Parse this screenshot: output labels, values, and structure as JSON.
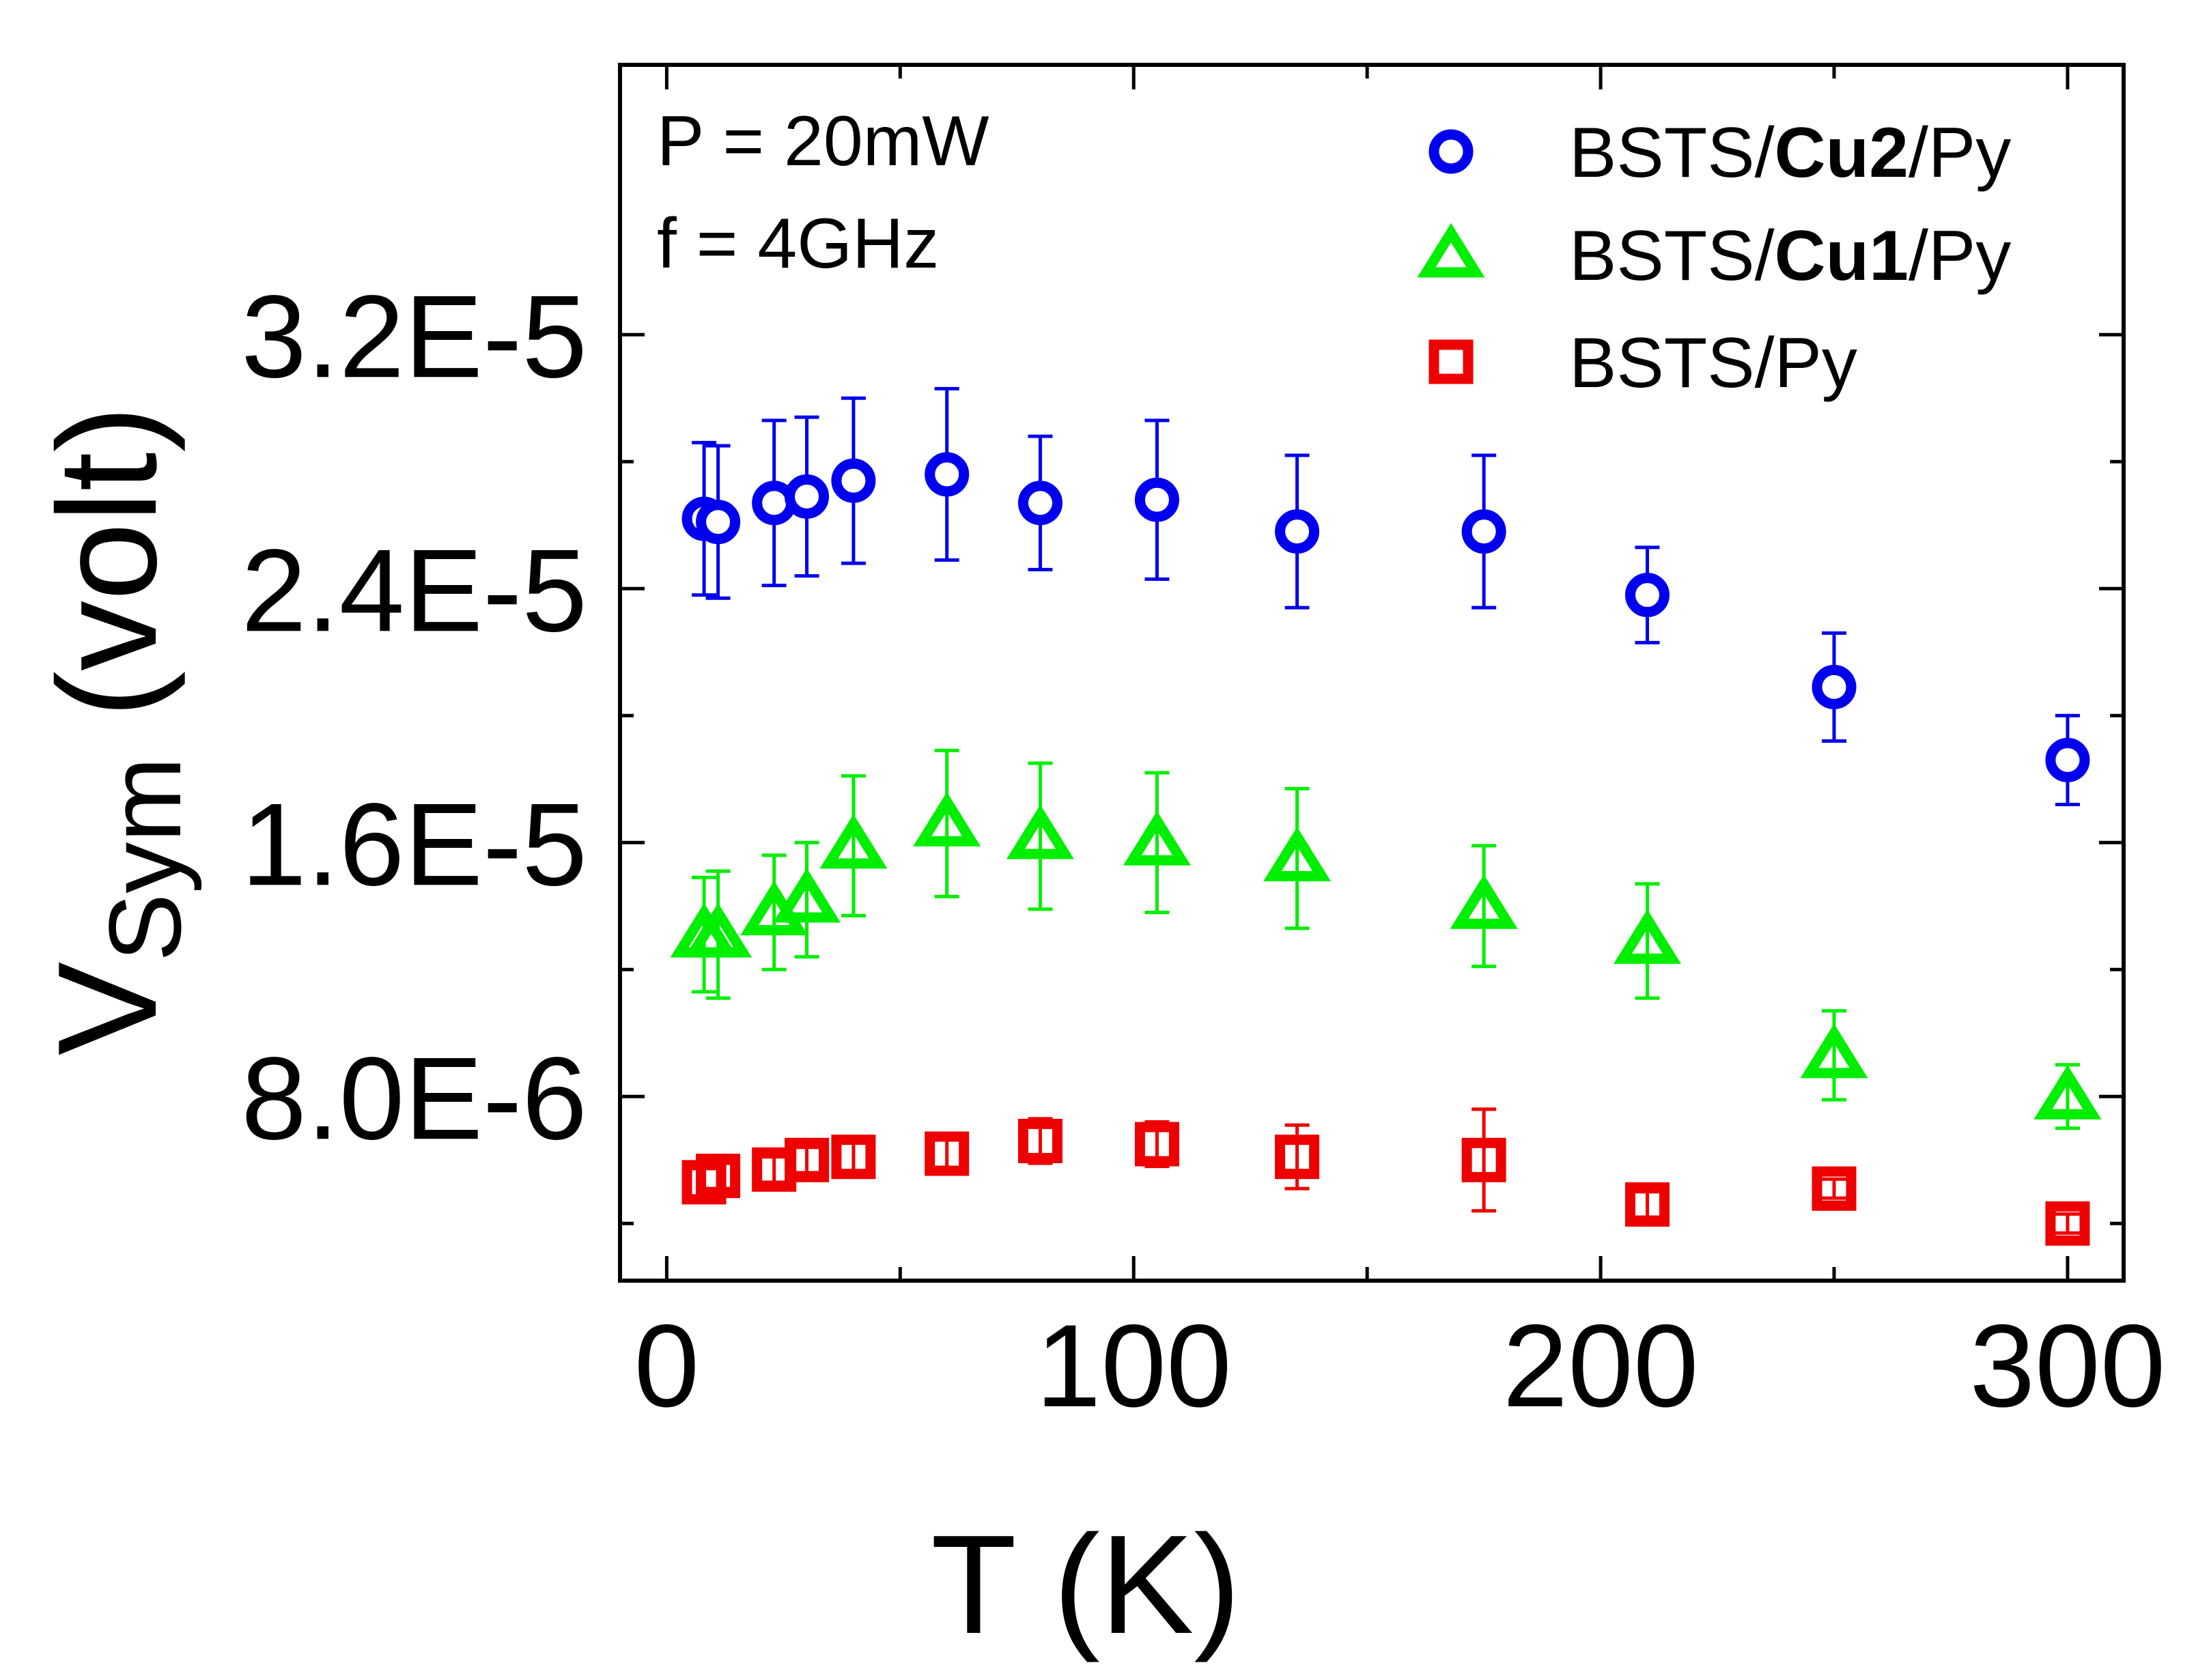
{
  "chart_data": {
    "type": "scatter",
    "xlabel": "T (K)",
    "ylabel": {
      "main": "V",
      "sub": "Sym",
      "unit": " (volt)"
    },
    "xlim": [
      -10,
      312
    ],
    "ylim": [
      2.2e-06,
      4.05e-05
    ],
    "x_ticks": [
      0,
      100,
      200,
      300
    ],
    "x_tick_labels": [
      "0",
      "100",
      "200",
      "300"
    ],
    "x_minor_ticks": [
      50,
      150,
      250
    ],
    "y_ticks": [
      8e-06,
      1.6e-05,
      2.4e-05,
      3.2e-05
    ],
    "y_tick_labels": [
      "8.0E-6",
      "1.6E-5",
      "2.4E-5",
      "3.2E-5"
    ],
    "y_minor_ticks": [
      4e-06,
      1.2e-05,
      2e-05,
      2.8e-05
    ],
    "grid": false,
    "legend_position": "top-right",
    "annotations": [
      "P = 20mW",
      "f = 4GHz"
    ],
    "series": [
      {
        "name": "BSTS/Cu2/Py",
        "legend_parts": [
          {
            "text": "BSTS/",
            "bold": false
          },
          {
            "text": "Cu2",
            "bold": true
          },
          {
            "text": "/Py",
            "bold": false
          }
        ],
        "marker": "circle-open",
        "color": "#0000ee",
        "points": [
          {
            "x": 8,
            "y": 2.62e-05,
            "err": 2.4e-06
          },
          {
            "x": 11,
            "y": 2.61e-05,
            "err": 2.4e-06
          },
          {
            "x": 23,
            "y": 2.67e-05,
            "err": 2.6e-06
          },
          {
            "x": 30,
            "y": 2.69e-05,
            "err": 2.5e-06
          },
          {
            "x": 40,
            "y": 2.74e-05,
            "err": 2.6e-06
          },
          {
            "x": 60,
            "y": 2.76e-05,
            "err": 2.7e-06
          },
          {
            "x": 80,
            "y": 2.67e-05,
            "err": 2.1e-06
          },
          {
            "x": 105,
            "y": 2.68e-05,
            "err": 2.5e-06
          },
          {
            "x": 135,
            "y": 2.58e-05,
            "err": 2.4e-06
          },
          {
            "x": 175,
            "y": 2.58e-05,
            "err": 2.4e-06
          },
          {
            "x": 210,
            "y": 2.38e-05,
            "err": 1.5e-06
          },
          {
            "x": 250,
            "y": 2.09e-05,
            "err": 1.7e-06
          },
          {
            "x": 300,
            "y": 1.86e-05,
            "err": 1.4e-06
          }
        ]
      },
      {
        "name": "BSTS/Cu1/Py",
        "legend_parts": [
          {
            "text": "BSTS/",
            "bold": false
          },
          {
            "text": "Cu1",
            "bold": true
          },
          {
            "text": "/Py",
            "bold": false
          }
        ],
        "marker": "triangle-open",
        "color": "#00ee00",
        "points": [
          {
            "x": 8,
            "y": 1.31e-05,
            "err": 1.8e-06
          },
          {
            "x": 11,
            "y": 1.31e-05,
            "err": 2e-06
          },
          {
            "x": 23,
            "y": 1.38e-05,
            "err": 1.8e-06
          },
          {
            "x": 30,
            "y": 1.42e-05,
            "err": 1.8e-06
          },
          {
            "x": 40,
            "y": 1.59e-05,
            "err": 2.2e-06
          },
          {
            "x": 60,
            "y": 1.66e-05,
            "err": 2.3e-06
          },
          {
            "x": 80,
            "y": 1.62e-05,
            "err": 2.3e-06
          },
          {
            "x": 105,
            "y": 1.6e-05,
            "err": 2.2e-06
          },
          {
            "x": 135,
            "y": 1.55e-05,
            "err": 2.2e-06
          },
          {
            "x": 175,
            "y": 1.4e-05,
            "err": 1.9e-06
          },
          {
            "x": 210,
            "y": 1.29e-05,
            "err": 1.8e-06
          },
          {
            "x": 250,
            "y": 9.3e-06,
            "err": 1.4e-06
          },
          {
            "x": 300,
            "y": 8e-06,
            "err": 1e-06
          }
        ]
      },
      {
        "name": "BSTS/Py",
        "legend_parts": [
          {
            "text": "BSTS/Py",
            "bold": false
          }
        ],
        "marker": "square-open",
        "color": "#ee0000",
        "points": [
          {
            "x": 8,
            "y": 5.3e-06,
            "err": 5e-07
          },
          {
            "x": 11,
            "y": 5.5e-06,
            "err": 4e-07
          },
          {
            "x": 23,
            "y": 5.7e-06,
            "err": 4e-07
          },
          {
            "x": 30,
            "y": 6e-06,
            "err": 4e-07
          },
          {
            "x": 40,
            "y": 6.1e-06,
            "err": 5e-07
          },
          {
            "x": 60,
            "y": 6.2e-06,
            "err": 6e-07
          },
          {
            "x": 80,
            "y": 6.6e-06,
            "err": 7e-07
          },
          {
            "x": 105,
            "y": 6.5e-06,
            "err": 7e-07
          },
          {
            "x": 135,
            "y": 6.1e-06,
            "err": 1e-06
          },
          {
            "x": 175,
            "y": 6e-06,
            "err": 1.6e-06
          },
          {
            "x": 210,
            "y": 4.6e-06,
            "err": 4e-07
          },
          {
            "x": 250,
            "y": 5.1e-06,
            "err": 3e-07
          },
          {
            "x": 300,
            "y": 4e-06,
            "err": 3e-07
          }
        ]
      }
    ]
  }
}
